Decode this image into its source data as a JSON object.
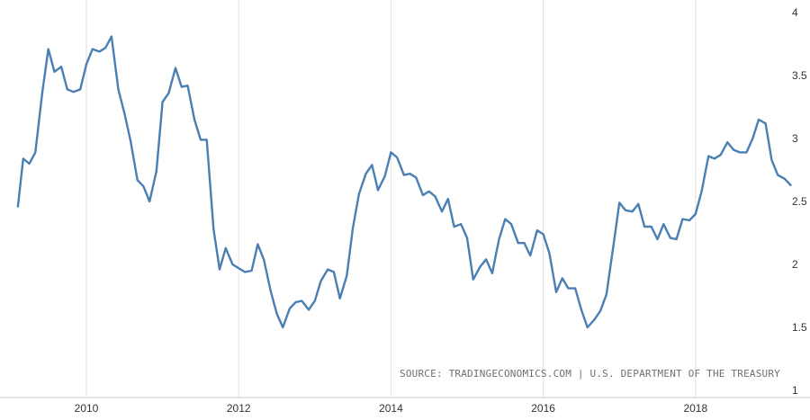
{
  "chart_data": {
    "type": "line",
    "title": "",
    "xlabel": "",
    "ylabel": "",
    "xlim": [
      2009.1,
      2019.3
    ],
    "ylim": [
      1,
      4
    ],
    "grid": "vertical",
    "x_ticks": [
      2010,
      2012,
      2014,
      2016,
      2018
    ],
    "x_tick_labels": [
      "2010",
      "2012",
      "2014",
      "2016",
      "2018"
    ],
    "y_ticks": [
      1,
      1.5,
      2,
      2.5,
      3,
      3.5,
      4
    ],
    "y_tick_labels": [
      "1",
      "1.5",
      "2",
      "2.5",
      "3",
      "3.5",
      "4"
    ],
    "source": "SOURCE: TRADINGECONOMICS.COM | U.S. DEPARTMENT OF THE TREASURY",
    "line_color": "#4a7fb3",
    "series": [
      {
        "x": [
          2009.1,
          2009.17,
          2009.25,
          2009.33,
          2009.42,
          2009.5,
          2009.58,
          2009.67,
          2009.75,
          2009.83,
          2009.92,
          2010.0,
          2010.08,
          2010.17,
          2010.25,
          2010.33,
          2010.42,
          2010.5,
          2010.58,
          2010.67,
          2010.75,
          2010.83,
          2010.92,
          2011.0,
          2011.08,
          2011.17,
          2011.25,
          2011.33,
          2011.42,
          2011.5,
          2011.58,
          2011.67,
          2011.75,
          2011.83,
          2011.92,
          2012.0,
          2012.08,
          2012.17,
          2012.25,
          2012.33,
          2012.42,
          2012.5,
          2012.58,
          2012.67,
          2012.75,
          2012.83,
          2012.92,
          2013.0,
          2013.08,
          2013.17,
          2013.25,
          2013.33,
          2013.42,
          2013.5,
          2013.58,
          2013.67,
          2013.75,
          2013.83,
          2013.92,
          2014.0,
          2014.08,
          2014.17,
          2014.25,
          2014.33,
          2014.42,
          2014.5,
          2014.58,
          2014.67,
          2014.75,
          2014.83,
          2014.92,
          2015.0,
          2015.08,
          2015.17,
          2015.25,
          2015.33,
          2015.42,
          2015.5,
          2015.58,
          2015.67,
          2015.75,
          2015.83,
          2015.92,
          2016.0,
          2016.08,
          2016.17,
          2016.25,
          2016.33,
          2016.42,
          2016.5,
          2016.58,
          2016.67,
          2016.75,
          2016.83,
          2016.92,
          2017.0,
          2017.08,
          2017.17,
          2017.25,
          2017.33,
          2017.42,
          2017.5,
          2017.58,
          2017.67,
          2017.75,
          2017.83,
          2017.92,
          2018.0,
          2018.08,
          2018.17,
          2018.25,
          2018.33,
          2018.42,
          2018.5,
          2018.58,
          2018.67,
          2018.75,
          2018.83,
          2018.92,
          2019.0,
          2019.08,
          2019.17,
          2019.25
        ],
        "y": [
          2.46,
          2.84,
          2.8,
          2.89,
          3.36,
          3.71,
          3.53,
          3.57,
          3.39,
          3.37,
          3.39,
          3.59,
          3.71,
          3.69,
          3.72,
          3.81,
          3.39,
          3.2,
          2.98,
          2.67,
          2.62,
          2.5,
          2.74,
          3.29,
          3.36,
          3.56,
          3.41,
          3.42,
          3.15,
          2.99,
          2.99,
          2.28,
          1.96,
          2.13,
          2.0,
          1.97,
          1.94,
          1.95,
          2.16,
          2.04,
          1.79,
          1.61,
          1.5,
          1.65,
          1.7,
          1.71,
          1.64,
          1.71,
          1.87,
          1.96,
          1.94,
          1.73,
          1.91,
          2.29,
          2.56,
          2.72,
          2.79,
          2.59,
          2.7,
          2.89,
          2.85,
          2.71,
          2.72,
          2.69,
          2.55,
          2.58,
          2.54,
          2.42,
          2.52,
          2.3,
          2.32,
          2.21,
          1.88,
          1.98,
          2.04,
          1.93,
          2.2,
          2.36,
          2.32,
          2.17,
          2.17,
          2.07,
          2.27,
          2.24,
          2.09,
          1.78,
          1.89,
          1.81,
          1.81,
          1.64,
          1.5,
          1.56,
          1.63,
          1.76,
          2.14,
          2.49,
          2.43,
          2.42,
          2.48,
          2.3,
          2.3,
          2.2,
          2.32,
          2.21,
          2.2,
          2.36,
          2.35,
          2.4,
          2.58,
          2.86,
          2.84,
          2.87,
          2.97,
          2.91,
          2.89,
          2.89,
          3.0,
          3.15,
          3.12,
          2.83,
          2.71,
          2.68,
          2.63
        ]
      }
    ]
  }
}
